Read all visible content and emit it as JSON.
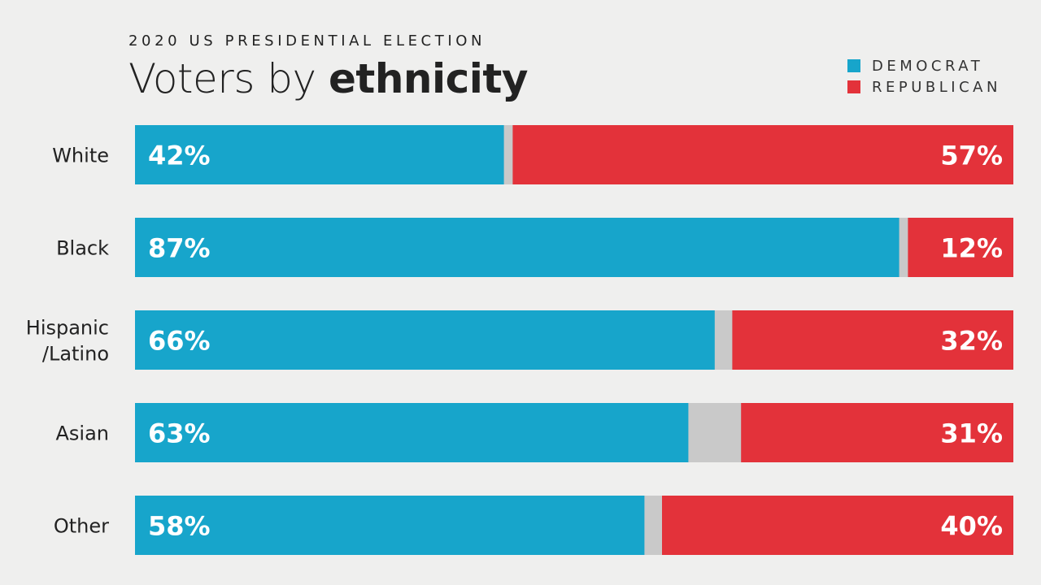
{
  "header": {
    "subtitle": "2020 US PRESIDENTIAL ELECTION",
    "title_light": "Voters by ",
    "title_bold": "ethnicity"
  },
  "colors": {
    "democrat": "#17a5cb",
    "republican": "#e3323a",
    "other": "#c9c9c9",
    "background": "#efefee"
  },
  "chart_data": {
    "type": "bar",
    "orientation": "horizontal",
    "stacked": "100%",
    "title": "Voters by ethnicity",
    "subtitle": "2020 US PRESIDENTIAL ELECTION",
    "categories": [
      [
        "White"
      ],
      [
        "Black"
      ],
      [
        "Hispanic",
        "/Latino"
      ],
      [
        "Asian"
      ],
      [
        "Other"
      ]
    ],
    "series": [
      {
        "name": "DEMOCRAT",
        "values": [
          42,
          87,
          66,
          63,
          58
        ],
        "labels": [
          "42%",
          "87%",
          "66%",
          "63%",
          "58%"
        ]
      },
      {
        "name": "REPUBLICAN",
        "values": [
          57,
          12,
          32,
          31,
          40
        ],
        "labels": [
          "57%",
          "12%",
          "32%",
          "31%",
          "40%"
        ]
      }
    ],
    "xlim": [
      0,
      100
    ],
    "grid": false,
    "legend_placement": "top-right"
  }
}
